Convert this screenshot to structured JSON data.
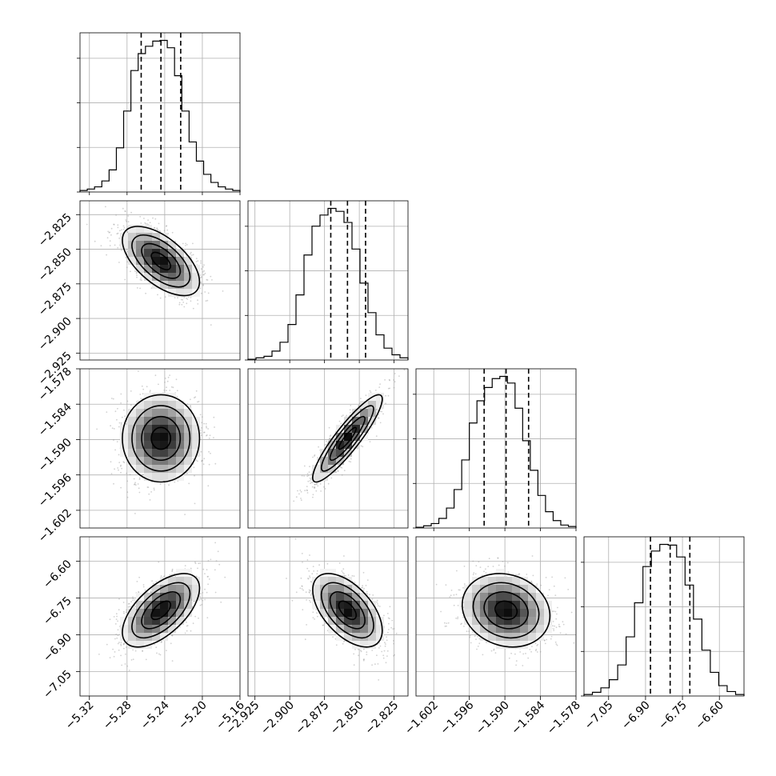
{
  "chart_data": {
    "type": "corner",
    "title": "",
    "grid": true,
    "parameters": [
      {
        "name": "",
        "range": [
          -5.33,
          -5.16
        ],
        "ticks": [
          "−5.32",
          "−5.28",
          "−5.24",
          "−5.20",
          "−5.16"
        ],
        "tick_values": [
          -5.32,
          -5.28,
          -5.24,
          -5.2,
          -5.16
        ],
        "quantiles": [
          -5.265,
          -5.244,
          -5.223
        ]
      },
      {
        "name": "",
        "range": [
          -2.93,
          -2.815
        ],
        "ticks": [
          "−2.925",
          "−2.900",
          "−2.875",
          "−2.850",
          "−2.825"
        ],
        "tick_values": [
          -2.925,
          -2.9,
          -2.875,
          -2.85,
          -2.825
        ],
        "quantiles": [
          -2.8705,
          -2.8585,
          -2.8455
        ]
      },
      {
        "name": "",
        "range": [
          -1.605,
          -1.578
        ],
        "ticks": [
          "−1.602",
          "−1.596",
          "−1.590",
          "−1.584",
          "−1.578"
        ],
        "tick_values": [
          -1.602,
          -1.596,
          -1.59,
          -1.584,
          -1.578
        ],
        "quantiles": [
          -1.5935,
          -1.5898,
          -1.586
        ]
      },
      {
        "name": "",
        "range": [
          -7.15,
          -6.5
        ],
        "ticks": [
          "−7.05",
          "−6.90",
          "−6.75",
          "−6.60"
        ],
        "tick_values": [
          -7.05,
          -6.9,
          -6.75,
          -6.6
        ],
        "quantiles": [
          -6.88,
          -6.8,
          -6.72
        ]
      }
    ],
    "histograms": [
      {
        "bins": [
          -5.33,
          -5.16
        ],
        "counts": [
          2,
          4,
          7,
          15,
          30,
          60,
          110,
          165,
          188,
          198,
          205,
          206,
          196,
          158,
          110,
          68,
          42,
          24,
          13,
          7,
          4,
          2
        ]
      },
      {
        "bins": [
          -2.93,
          -2.815
        ],
        "counts": [
          1,
          3,
          5,
          12,
          24,
          48,
          88,
          142,
          181,
          196,
          205,
          201,
          186,
          150,
          104,
          64,
          34,
          16,
          7,
          3
        ]
      },
      {
        "bins": [
          -1.605,
          -1.578
        ],
        "counts": [
          1,
          3,
          6,
          13,
          27,
          52,
          92,
          142,
          172,
          190,
          202,
          205,
          196,
          162,
          118,
          78,
          44,
          22,
          10,
          4,
          2
        ]
      },
      {
        "bins": [
          -7.15,
          -6.5
        ],
        "counts": [
          2,
          5,
          11,
          22,
          42,
          80,
          126,
          175,
          196,
          205,
          204,
          188,
          150,
          104,
          62,
          32,
          14,
          6,
          2
        ]
      }
    ],
    "correlations": [
      [
        1,
        -0.6,
        0.0,
        0.6
      ],
      [
        -0.6,
        1,
        0.9,
        -0.55
      ],
      [
        0.0,
        0.9,
        1,
        -0.15
      ],
      [
        0.6,
        -0.55,
        -0.15,
        1
      ]
    ],
    "sigmas": [
      0.0205,
      0.0125,
      0.0037,
      0.075
    ],
    "means": [
      -5.244,
      -2.8585,
      -1.5898,
      -6.8
    ],
    "y_tick_labels": {
      "1": [
        "−2.825",
        "−2.850",
        "−2.875",
        "−2.900",
        "−2.925"
      ],
      "2": [
        "−1.578",
        "−1.584",
        "−1.590",
        "−1.596",
        "−1.602"
      ],
      "3": [
        "−6.60",
        "−6.75",
        "−6.90",
        "−7.05"
      ]
    },
    "colors": {
      "contour": "#000000",
      "scatter": "#9a9a9a",
      "grid": "#b0b0b0",
      "density_max": "#000000"
    }
  }
}
